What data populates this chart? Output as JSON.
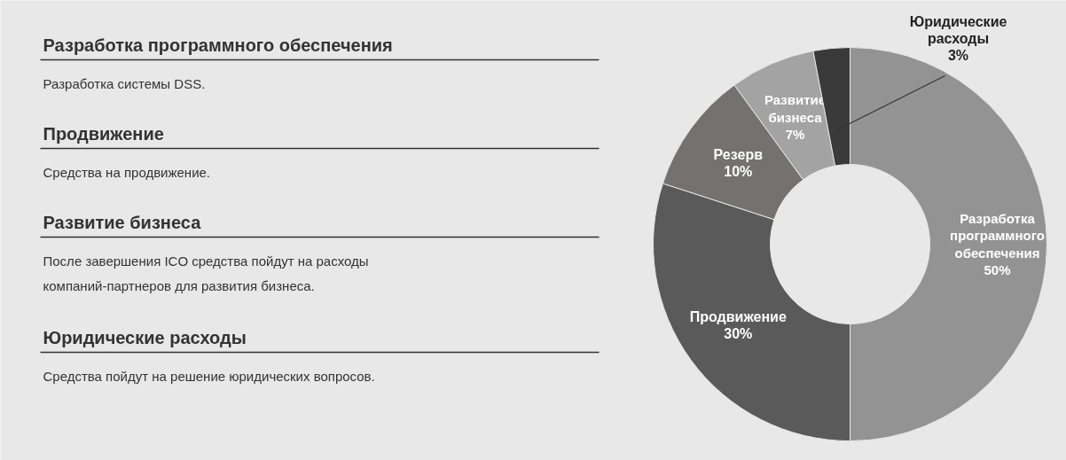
{
  "chart_data": {
    "type": "donut",
    "categories": [
      "Разработка программного обеспечения",
      "Продвижение",
      "Резерв",
      "Развитие бизнеса",
      "Юридические расходы"
    ],
    "values": [
      50,
      30,
      10,
      7,
      3
    ],
    "value_labels": [
      "50%",
      "30%",
      "10%",
      "7%",
      "3%"
    ],
    "colors": [
      "#939393",
      "#5a5a5a",
      "#757171",
      "#a3a3a3",
      "#3a3a3a"
    ],
    "annotations": [
      "Разработка программного обеспечения",
      "Разработка системы DSS.",
      "Продвижение",
      "Средства на продвижение.",
      "Развитие бизнеса",
      "После завершения ICO средства пойдут на расходы\nкомпаний-партнеров для развития бизнеса.",
      "Юридические расходы",
      "Средства пойдут на решение юридических вопросов."
    ]
  }
}
